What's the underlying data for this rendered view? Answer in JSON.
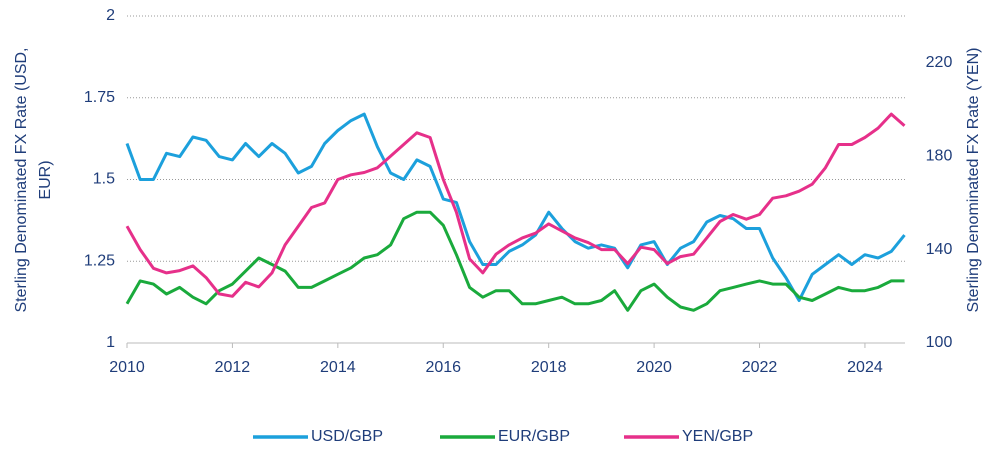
{
  "chart_data": {
    "type": "line",
    "y_label": [
      "Sterling Denominated FX Rate (USD,",
      "EUR)"
    ],
    "y2_label": "Sterling Denominated FX Rate (YEN)",
    "x": [
      2010,
      2010.25,
      2010.5,
      2010.75,
      2011,
      2011.25,
      2011.5,
      2011.75,
      2012,
      2012.25,
      2012.5,
      2012.75,
      2013,
      2013.25,
      2013.5,
      2013.75,
      2014,
      2014.25,
      2014.5,
      2014.75,
      2015,
      2015.25,
      2015.5,
      2015.75,
      2016,
      2016.25,
      2016.5,
      2016.75,
      2017,
      2017.25,
      2017.5,
      2017.75,
      2018,
      2018.25,
      2018.5,
      2018.75,
      2019,
      2019.25,
      2019.5,
      2019.75,
      2020,
      2020.25,
      2020.5,
      2020.75,
      2021,
      2021.25,
      2021.5,
      2021.75,
      2022,
      2022.25,
      2022.5,
      2022.75,
      2023,
      2023.25,
      2023.5,
      2023.75,
      2024,
      2024.25,
      2024.5,
      2024.75
    ],
    "series": [
      {
        "name": "USD/GBP",
        "color": "#1ca0dc",
        "values": [
          1.61,
          1.5,
          1.5,
          1.58,
          1.57,
          1.63,
          1.62,
          1.57,
          1.56,
          1.61,
          1.57,
          1.61,
          1.58,
          1.52,
          1.54,
          1.61,
          1.65,
          1.68,
          1.7,
          1.6,
          1.52,
          1.5,
          1.56,
          1.54,
          1.44,
          1.43,
          1.31,
          1.24,
          1.24,
          1.28,
          1.3,
          1.33,
          1.4,
          1.35,
          1.31,
          1.29,
          1.3,
          1.29,
          1.23,
          1.3,
          1.31,
          1.24,
          1.29,
          1.31,
          1.37,
          1.39,
          1.38,
          1.35,
          1.35,
          1.26,
          1.2,
          1.13,
          1.21,
          1.24,
          1.27,
          1.24,
          1.27,
          1.26,
          1.28,
          1.33
        ]
      },
      {
        "name": "EUR/GBP",
        "color": "#1aaa3c",
        "values": [
          1.12,
          1.19,
          1.18,
          1.15,
          1.17,
          1.14,
          1.12,
          1.16,
          1.18,
          1.22,
          1.26,
          1.24,
          1.22,
          1.17,
          1.17,
          1.19,
          1.21,
          1.23,
          1.26,
          1.27,
          1.3,
          1.38,
          1.4,
          1.4,
          1.36,
          1.27,
          1.17,
          1.14,
          1.16,
          1.16,
          1.12,
          1.12,
          1.13,
          1.14,
          1.12,
          1.12,
          1.13,
          1.16,
          1.1,
          1.16,
          1.18,
          1.14,
          1.11,
          1.1,
          1.12,
          1.16,
          1.17,
          1.18,
          1.19,
          1.18,
          1.18,
          1.14,
          1.13,
          1.15,
          1.17,
          1.16,
          1.16,
          1.17,
          1.19,
          1.19
        ]
      },
      {
        "name": "YEN/GBP",
        "color": "#e6308a",
        "axis": "y2",
        "values": [
          150,
          140,
          132,
          130,
          131,
          133,
          128,
          121,
          120,
          126,
          124,
          130,
          142,
          150,
          158,
          160,
          170,
          172,
          173,
          175,
          180,
          185,
          190,
          188,
          170,
          156,
          136,
          130,
          138,
          142,
          145,
          147,
          151,
          148,
          145,
          143,
          140,
          140,
          134,
          141,
          140,
          134,
          137,
          138,
          145,
          152,
          155,
          153,
          155,
          162,
          163,
          165,
          168,
          175,
          185,
          185,
          188,
          192,
          198,
          193
        ]
      }
    ],
    "xlim": [
      2010,
      2024.76
    ],
    "xticks": [
      2010,
      2012,
      2014,
      2016,
      2018,
      2020,
      2022,
      2024
    ],
    "ylim": [
      1,
      2
    ],
    "yticks": [
      1,
      1.25,
      1.5,
      1.75,
      2
    ],
    "y2lim": [
      100,
      240
    ],
    "y2ticks": [
      100,
      140,
      180,
      220
    ],
    "grid": true,
    "legend": "bottom"
  }
}
